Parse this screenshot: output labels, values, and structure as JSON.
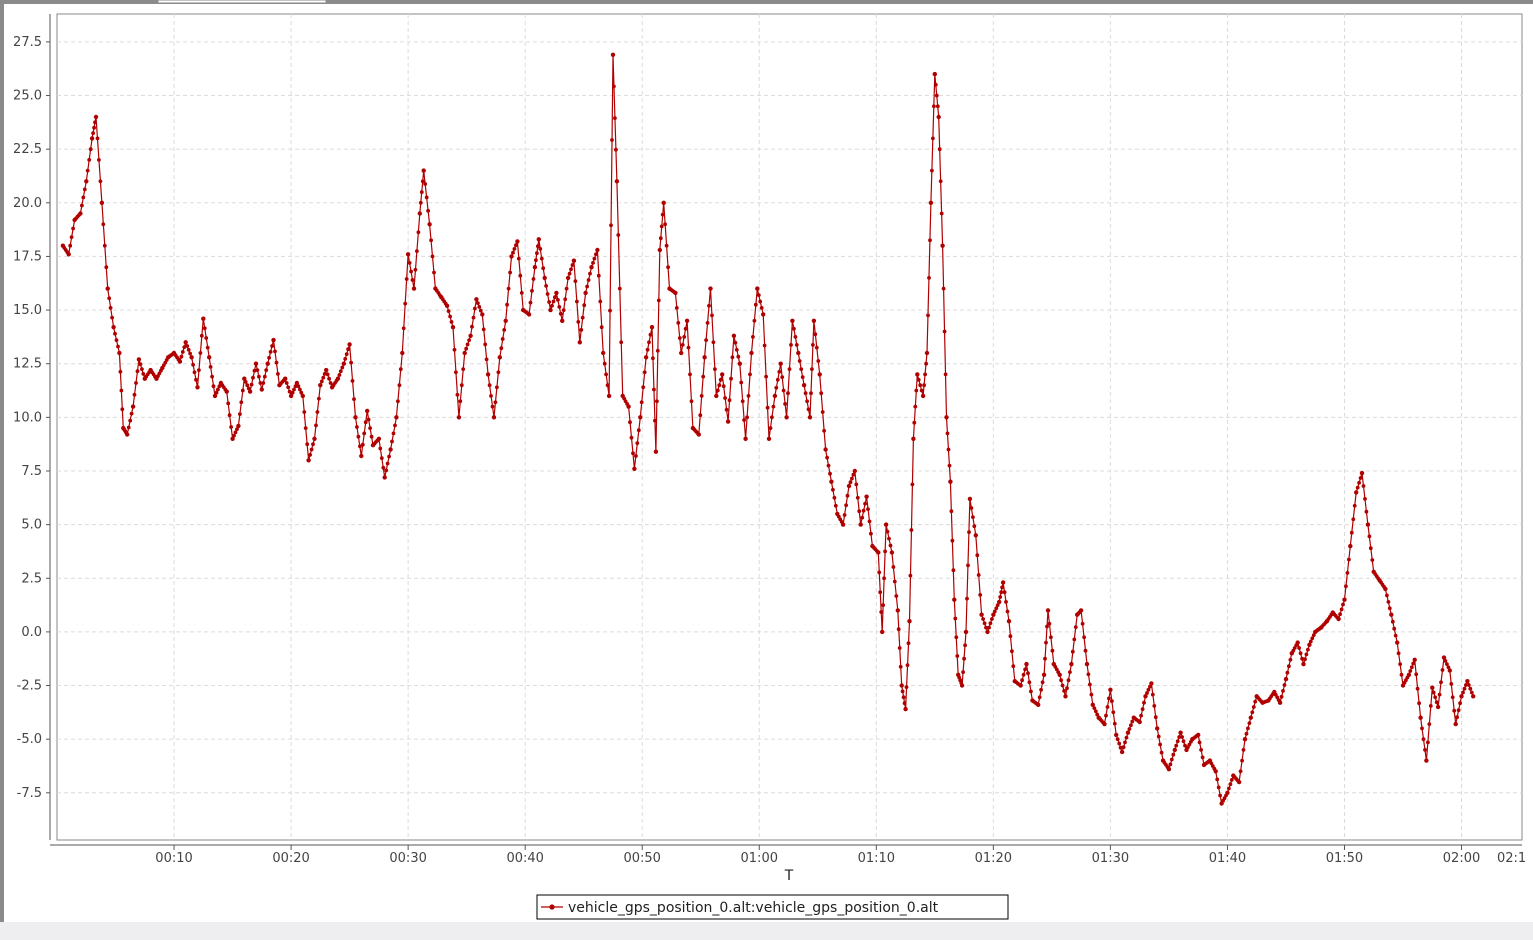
{
  "chart_data": {
    "type": "line",
    "title": "",
    "xlabel": "T",
    "ylabel": "",
    "xlim": [
      0,
      7510
    ],
    "ylim": [
      -9.7,
      28.8
    ],
    "x_ticks": [
      {
        "t": 600,
        "label": "00:10"
      },
      {
        "t": 1200,
        "label": "00:20"
      },
      {
        "t": 1800,
        "label": "00:30"
      },
      {
        "t": 2400,
        "label": "00:40"
      },
      {
        "t": 3000,
        "label": "00:50"
      },
      {
        "t": 3600,
        "label": "01:00"
      },
      {
        "t": 4200,
        "label": "01:10"
      },
      {
        "t": 4800,
        "label": "01:20"
      },
      {
        "t": 5400,
        "label": "01:30"
      },
      {
        "t": 6000,
        "label": "01:40"
      },
      {
        "t": 6600,
        "label": "01:50"
      },
      {
        "t": 7200,
        "label": "02:00"
      },
      {
        "t": 7800,
        "label": "02:1"
      }
    ],
    "y_ticks": [
      {
        "v": 27.5,
        "label": "27.5"
      },
      {
        "v": 25.0,
        "label": "25.0"
      },
      {
        "v": 22.5,
        "label": "22.5"
      },
      {
        "v": 20.0,
        "label": "20.0"
      },
      {
        "v": 17.5,
        "label": "17.5"
      },
      {
        "v": 15.0,
        "label": "15.0"
      },
      {
        "v": 12.5,
        "label": "12.5"
      },
      {
        "v": 10.0,
        "label": "10.0"
      },
      {
        "v": 7.5,
        "label": "7.5"
      },
      {
        "v": 5.0,
        "label": "5.0"
      },
      {
        "v": 2.5,
        "label": "2.5"
      },
      {
        "v": 0.0,
        "label": "0.0"
      },
      {
        "v": -2.5,
        "label": "-2.5"
      },
      {
        "v": -5.0,
        "label": "-5.0"
      },
      {
        "v": -7.5,
        "label": "-7.5"
      }
    ],
    "grid": true,
    "legend_position": "bottom-center",
    "series": [
      {
        "name": "vehicle_gps_position_0.alt:vehicle_gps_position_0.alt",
        "color": "#b00000",
        "points": [
          [
            30,
            18.0
          ],
          [
            60,
            17.6
          ],
          [
            90,
            19.2
          ],
          [
            120,
            19.5
          ],
          [
            150,
            21.0
          ],
          [
            180,
            23.0
          ],
          [
            200,
            24.0
          ],
          [
            230,
            20.0
          ],
          [
            260,
            16.0
          ],
          [
            290,
            14.2
          ],
          [
            320,
            13.0
          ],
          [
            340,
            9.5
          ],
          [
            360,
            9.2
          ],
          [
            390,
            10.5
          ],
          [
            420,
            12.7
          ],
          [
            450,
            11.8
          ],
          [
            480,
            12.2
          ],
          [
            510,
            11.8
          ],
          [
            540,
            12.3
          ],
          [
            570,
            12.8
          ],
          [
            600,
            13.0
          ],
          [
            630,
            12.6
          ],
          [
            660,
            13.5
          ],
          [
            690,
            12.8
          ],
          [
            720,
            11.4
          ],
          [
            750,
            14.6
          ],
          [
            780,
            12.8
          ],
          [
            810,
            11.0
          ],
          [
            840,
            11.6
          ],
          [
            870,
            11.2
          ],
          [
            900,
            9.0
          ],
          [
            930,
            9.6
          ],
          [
            960,
            11.8
          ],
          [
            990,
            11.2
          ],
          [
            1020,
            12.5
          ],
          [
            1050,
            11.3
          ],
          [
            1080,
            12.5
          ],
          [
            1110,
            13.6
          ],
          [
            1140,
            11.5
          ],
          [
            1170,
            11.8
          ],
          [
            1200,
            11.0
          ],
          [
            1230,
            11.6
          ],
          [
            1260,
            11.0
          ],
          [
            1290,
            8.0
          ],
          [
            1320,
            9.0
          ],
          [
            1350,
            11.5
          ],
          [
            1380,
            12.2
          ],
          [
            1410,
            11.4
          ],
          [
            1440,
            11.8
          ],
          [
            1470,
            12.5
          ],
          [
            1500,
            13.4
          ],
          [
            1530,
            10.0
          ],
          [
            1560,
            8.2
          ],
          [
            1590,
            10.3
          ],
          [
            1620,
            8.7
          ],
          [
            1650,
            9.0
          ],
          [
            1680,
            7.2
          ],
          [
            1710,
            8.5
          ],
          [
            1740,
            10.0
          ],
          [
            1770,
            13.0
          ],
          [
            1800,
            17.6
          ],
          [
            1830,
            16.0
          ],
          [
            1860,
            19.5
          ],
          [
            1880,
            21.5
          ],
          [
            1910,
            19.0
          ],
          [
            1940,
            16.0
          ],
          [
            1970,
            15.6
          ],
          [
            2000,
            15.2
          ],
          [
            2030,
            14.2
          ],
          [
            2060,
            10.0
          ],
          [
            2090,
            13.0
          ],
          [
            2120,
            13.8
          ],
          [
            2150,
            15.5
          ],
          [
            2180,
            14.8
          ],
          [
            2210,
            12.0
          ],
          [
            2240,
            10.0
          ],
          [
            2270,
            12.8
          ],
          [
            2300,
            14.5
          ],
          [
            2330,
            17.5
          ],
          [
            2360,
            18.2
          ],
          [
            2390,
            15.0
          ],
          [
            2420,
            14.8
          ],
          [
            2450,
            17.0
          ],
          [
            2470,
            18.3
          ],
          [
            2500,
            16.5
          ],
          [
            2530,
            15.0
          ],
          [
            2560,
            15.8
          ],
          [
            2590,
            14.5
          ],
          [
            2620,
            16.5
          ],
          [
            2650,
            17.3
          ],
          [
            2680,
            13.5
          ],
          [
            2710,
            15.8
          ],
          [
            2740,
            17.0
          ],
          [
            2770,
            17.8
          ],
          [
            2800,
            13.0
          ],
          [
            2830,
            11.0
          ],
          [
            2850,
            26.9
          ],
          [
            2870,
            21.0
          ],
          [
            2900,
            11.0
          ],
          [
            2930,
            10.5
          ],
          [
            2960,
            7.6
          ],
          [
            2990,
            10.0
          ],
          [
            3020,
            12.8
          ],
          [
            3050,
            14.2
          ],
          [
            3070,
            8.4
          ],
          [
            3090,
            17.8
          ],
          [
            3110,
            20.0
          ],
          [
            3140,
            16.0
          ],
          [
            3170,
            15.8
          ],
          [
            3200,
            13.0
          ],
          [
            3230,
            14.5
          ],
          [
            3260,
            9.5
          ],
          [
            3290,
            9.2
          ],
          [
            3320,
            12.8
          ],
          [
            3350,
            16.0
          ],
          [
            3380,
            11.0
          ],
          [
            3410,
            12.0
          ],
          [
            3440,
            9.8
          ],
          [
            3470,
            13.8
          ],
          [
            3500,
            12.5
          ],
          [
            3530,
            9.0
          ],
          [
            3560,
            13.0
          ],
          [
            3590,
            16.0
          ],
          [
            3620,
            14.8
          ],
          [
            3650,
            9.0
          ],
          [
            3680,
            11.0
          ],
          [
            3710,
            12.5
          ],
          [
            3740,
            10.0
          ],
          [
            3770,
            14.5
          ],
          [
            3800,
            13.0
          ],
          [
            3830,
            11.5
          ],
          [
            3860,
            10.0
          ],
          [
            3880,
            14.5
          ],
          [
            3910,
            12.0
          ],
          [
            3940,
            8.5
          ],
          [
            3970,
            7.0
          ],
          [
            4000,
            5.5
          ],
          [
            4030,
            5.0
          ],
          [
            4060,
            6.8
          ],
          [
            4090,
            7.5
          ],
          [
            4120,
            5.0
          ],
          [
            4150,
            6.3
          ],
          [
            4180,
            4.0
          ],
          [
            4210,
            3.7
          ],
          [
            4230,
            0.0
          ],
          [
            4250,
            5.0
          ],
          [
            4280,
            3.7
          ],
          [
            4310,
            1.0
          ],
          [
            4330,
            -2.5
          ],
          [
            4350,
            -3.6
          ],
          [
            4370,
            0.5
          ],
          [
            4390,
            9.0
          ],
          [
            4410,
            12.0
          ],
          [
            4440,
            11.0
          ],
          [
            4460,
            13.0
          ],
          [
            4480,
            20.0
          ],
          [
            4500,
            26.0
          ],
          [
            4520,
            24.0
          ],
          [
            4540,
            18.0
          ],
          [
            4560,
            10.0
          ],
          [
            4580,
            7.0
          ],
          [
            4600,
            1.5
          ],
          [
            4620,
            -2.0
          ],
          [
            4640,
            -2.5
          ],
          [
            4660,
            0.0
          ],
          [
            4680,
            6.2
          ],
          [
            4710,
            4.5
          ],
          [
            4740,
            0.8
          ],
          [
            4770,
            0.0
          ],
          [
            4800,
            0.8
          ],
          [
            4830,
            1.4
          ],
          [
            4850,
            2.3
          ],
          [
            4880,
            0.5
          ],
          [
            4910,
            -2.3
          ],
          [
            4940,
            -2.5
          ],
          [
            4970,
            -1.5
          ],
          [
            5000,
            -3.2
          ],
          [
            5030,
            -3.4
          ],
          [
            5060,
            -2.0
          ],
          [
            5080,
            1.0
          ],
          [
            5110,
            -1.5
          ],
          [
            5140,
            -2.0
          ],
          [
            5170,
            -3.0
          ],
          [
            5200,
            -1.5
          ],
          [
            5230,
            0.8
          ],
          [
            5250,
            1.0
          ],
          [
            5280,
            -1.5
          ],
          [
            5310,
            -3.4
          ],
          [
            5340,
            -4.0
          ],
          [
            5370,
            -4.3
          ],
          [
            5400,
            -2.7
          ],
          [
            5430,
            -4.8
          ],
          [
            5460,
            -5.6
          ],
          [
            5490,
            -4.7
          ],
          [
            5520,
            -4.0
          ],
          [
            5550,
            -4.2
          ],
          [
            5580,
            -3.0
          ],
          [
            5610,
            -2.4
          ],
          [
            5640,
            -4.5
          ],
          [
            5670,
            -6.0
          ],
          [
            5700,
            -6.4
          ],
          [
            5730,
            -5.5
          ],
          [
            5760,
            -4.7
          ],
          [
            5790,
            -5.5
          ],
          [
            5820,
            -5.0
          ],
          [
            5850,
            -4.8
          ],
          [
            5880,
            -6.2
          ],
          [
            5910,
            -6.0
          ],
          [
            5940,
            -6.5
          ],
          [
            5970,
            -8.0
          ],
          [
            6000,
            -7.5
          ],
          [
            6030,
            -6.7
          ],
          [
            6060,
            -7.0
          ],
          [
            6090,
            -5.0
          ],
          [
            6120,
            -4.0
          ],
          [
            6150,
            -3.0
          ],
          [
            6180,
            -3.3
          ],
          [
            6210,
            -3.2
          ],
          [
            6240,
            -2.8
          ],
          [
            6270,
            -3.3
          ],
          [
            6300,
            -2.2
          ],
          [
            6330,
            -1.0
          ],
          [
            6360,
            -0.5
          ],
          [
            6390,
            -1.5
          ],
          [
            6420,
            -0.6
          ],
          [
            6450,
            0.0
          ],
          [
            6480,
            0.2
          ],
          [
            6510,
            0.5
          ],
          [
            6540,
            0.9
          ],
          [
            6570,
            0.6
          ],
          [
            6600,
            1.5
          ],
          [
            6630,
            4.0
          ],
          [
            6660,
            6.5
          ],
          [
            6690,
            7.4
          ],
          [
            6720,
            5.0
          ],
          [
            6750,
            2.8
          ],
          [
            6780,
            2.4
          ],
          [
            6810,
            2.0
          ],
          [
            6840,
            0.8
          ],
          [
            6870,
            -0.5
          ],
          [
            6900,
            -2.5
          ],
          [
            6930,
            -2.0
          ],
          [
            6960,
            -1.3
          ],
          [
            6990,
            -4.0
          ],
          [
            7020,
            -6.0
          ],
          [
            7050,
            -2.6
          ],
          [
            7080,
            -3.5
          ],
          [
            7110,
            -1.2
          ],
          [
            7140,
            -1.8
          ],
          [
            7170,
            -4.3
          ],
          [
            7200,
            -3.0
          ],
          [
            7230,
            -2.3
          ],
          [
            7260,
            -3.0
          ]
        ]
      }
    ]
  }
}
